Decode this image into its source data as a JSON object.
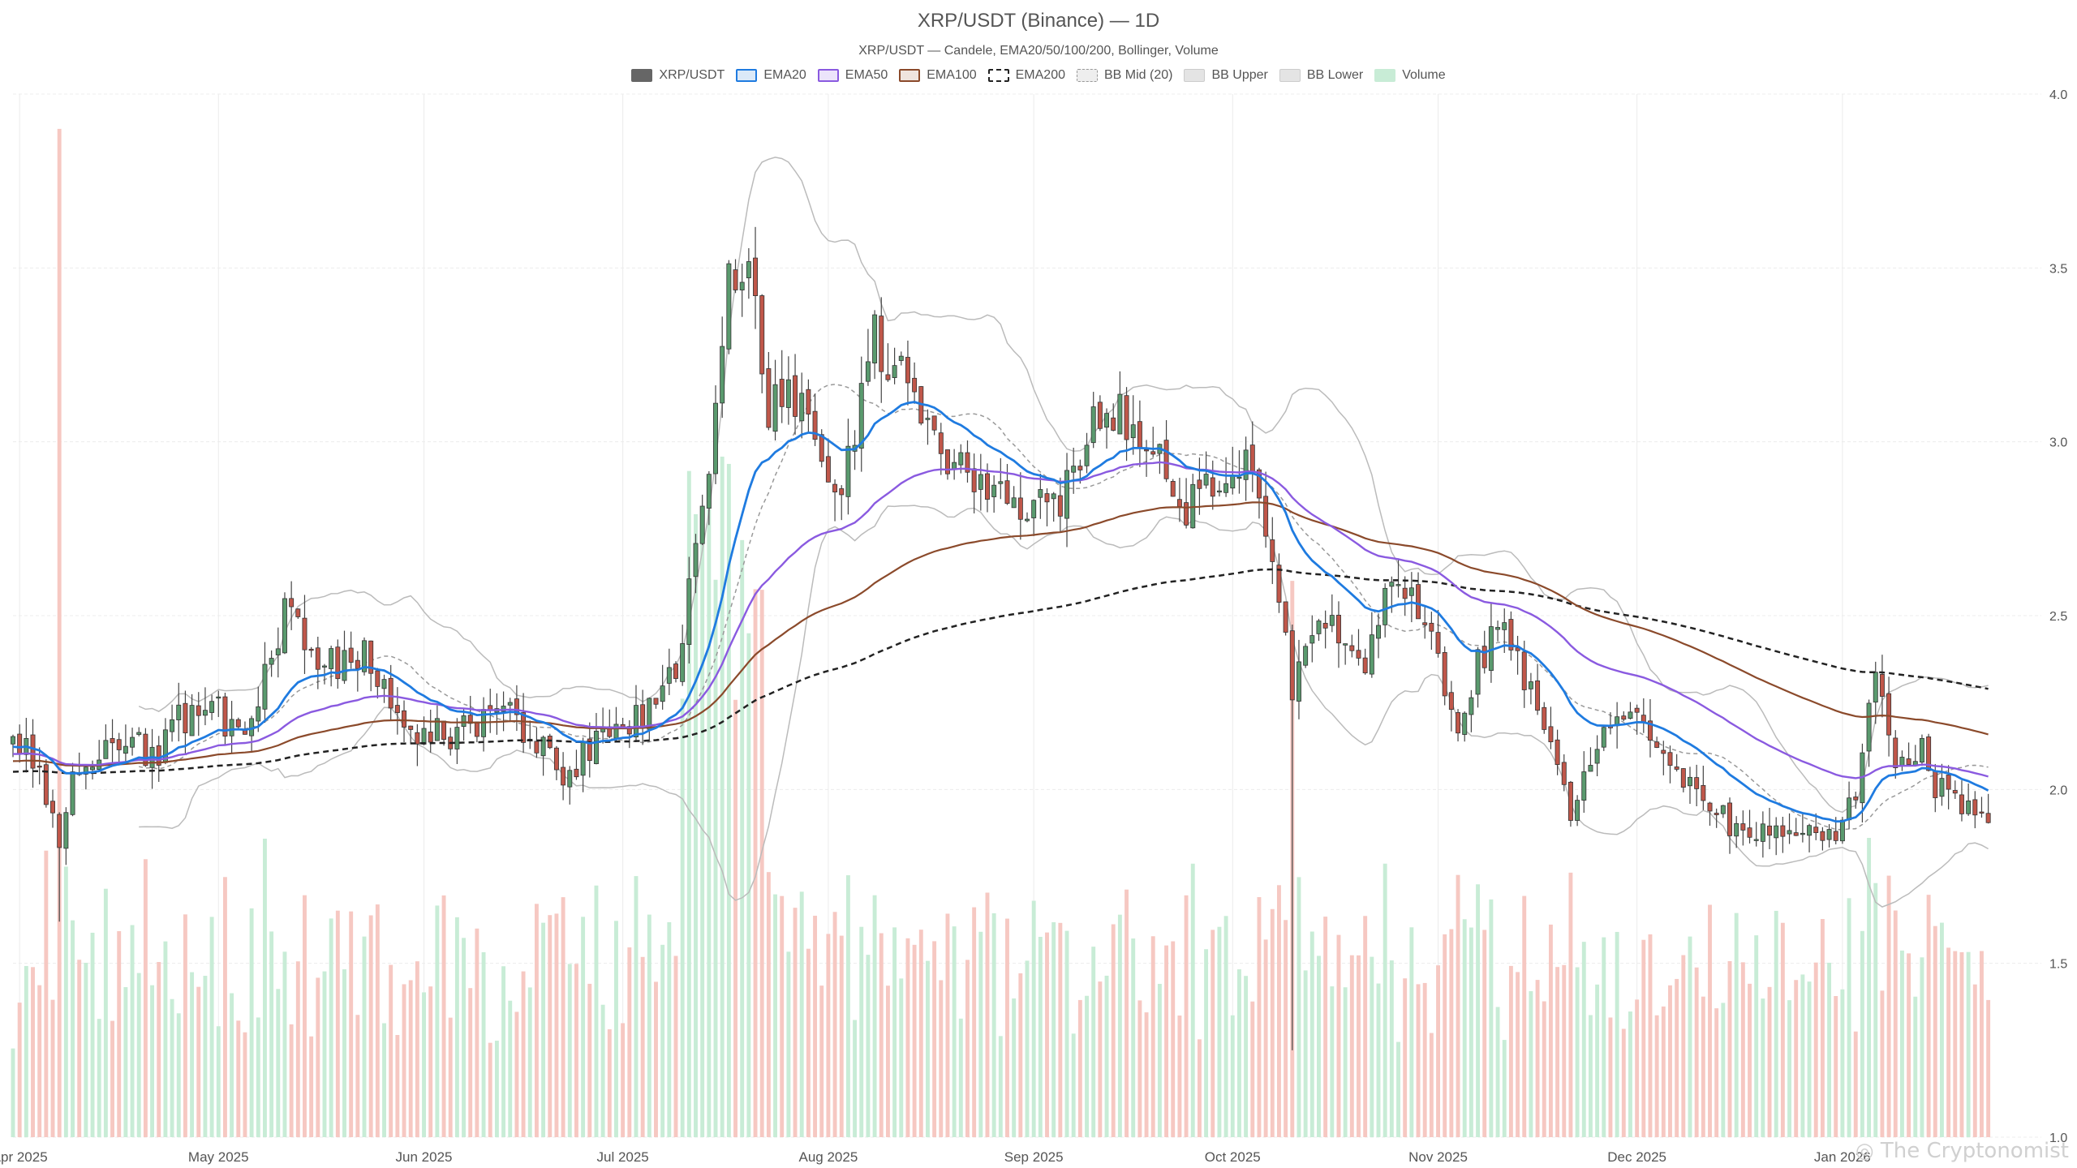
{
  "chart_data": {
    "type": "candlestick",
    "title": "XRP/USDT (Binance) — 1D",
    "subtitle": "XRP/USDT — Candele, EMA20/50/100/200, Bollinger, Volume",
    "legend_placement": "top-center",
    "grid": true,
    "x_range": [
      "2025-03-31",
      "2026-01-31"
    ],
    "ylim": [
      1.0,
      4.0
    ],
    "y_ticks": [
      "1.0",
      "1.5",
      "2.0",
      "2.5",
      "3.0",
      "3.5",
      "4.0"
    ],
    "x_ticks": [
      {
        "label": "Apr 2025",
        "date": "2025-04-01"
      },
      {
        "label": "May 2025",
        "date": "2025-05-01"
      },
      {
        "label": "Jun 2025",
        "date": "2025-06-01"
      },
      {
        "label": "Jul 2025",
        "date": "2025-07-01"
      },
      {
        "label": "Aug 2025",
        "date": "2025-08-01"
      },
      {
        "label": "Sep 2025",
        "date": "2025-09-01"
      },
      {
        "label": "Oct 2025",
        "date": "2025-10-01"
      },
      {
        "label": "Nov 2025",
        "date": "2025-11-01"
      },
      {
        "label": "Dec 2025",
        "date": "2025-12-01"
      },
      {
        "label": "Jan 2026",
        "date": "2026-01-01"
      }
    ],
    "legend": [
      {
        "name": "XRP/USDT",
        "key": "candles"
      },
      {
        "name": "EMA20",
        "key": "ema20"
      },
      {
        "name": "EMA50",
        "key": "ema50"
      },
      {
        "name": "EMA100",
        "key": "ema100"
      },
      {
        "name": "EMA200",
        "key": "ema200"
      },
      {
        "name": "BB Mid (20)",
        "key": "bb_mid"
      },
      {
        "name": "BB Upper",
        "key": "bb_upper"
      },
      {
        "name": "BB Lower",
        "key": "bb_lower"
      },
      {
        "name": "Volume",
        "key": "volume"
      }
    ],
    "colors": {
      "up": "#5a9a6e",
      "down": "#c0574a",
      "candle_legend": "#666666",
      "ema20": "#1f7be0",
      "ema50": "#8a5ae0",
      "ema100": "#8b4a2b",
      "ema200": "#222222",
      "bb_mid": "#999999",
      "bb_band": "#bbbbbb",
      "volume_up": "#c8ecd6",
      "volume_down": "#f6c8c2"
    },
    "close_anchors": [
      [
        "2025-03-31",
        2.13
      ],
      [
        "2025-04-04",
        2.1
      ],
      [
        "2025-04-07",
        1.8
      ],
      [
        "2025-04-09",
        2.05
      ],
      [
        "2025-04-14",
        2.15
      ],
      [
        "2025-04-22",
        2.1
      ],
      [
        "2025-04-25",
        2.2
      ],
      [
        "2025-05-01",
        2.22
      ],
      [
        "2025-05-05",
        2.12
      ],
      [
        "2025-05-09",
        2.4
      ],
      [
        "2025-05-12",
        2.55
      ],
      [
        "2025-05-16",
        2.35
      ],
      [
        "2025-05-23",
        2.38
      ],
      [
        "2025-05-31",
        2.17
      ],
      [
        "2025-06-06",
        2.15
      ],
      [
        "2025-06-12",
        2.25
      ],
      [
        "2025-06-18",
        2.15
      ],
      [
        "2025-06-22",
        2.02
      ],
      [
        "2025-06-28",
        2.18
      ],
      [
        "2025-07-04",
        2.2
      ],
      [
        "2025-07-10",
        2.4
      ],
      [
        "2025-07-12",
        2.75
      ],
      [
        "2025-07-14",
        2.9
      ],
      [
        "2025-07-17",
        3.45
      ],
      [
        "2025-07-20",
        3.55
      ],
      [
        "2025-07-23",
        3.1
      ],
      [
        "2025-07-26",
        3.18
      ],
      [
        "2025-08-02",
        2.8
      ],
      [
        "2025-08-08",
        3.3
      ],
      [
        "2025-08-13",
        3.15
      ],
      [
        "2025-08-19",
        2.95
      ],
      [
        "2025-08-25",
        2.85
      ],
      [
        "2025-08-30",
        2.8
      ],
      [
        "2025-09-05",
        2.85
      ],
      [
        "2025-09-10",
        3.05
      ],
      [
        "2025-09-14",
        3.08
      ],
      [
        "2025-09-20",
        2.98
      ],
      [
        "2025-09-24",
        2.82
      ],
      [
        "2025-09-30",
        2.92
      ],
      [
        "2025-10-04",
        2.92
      ],
      [
        "2025-10-10",
        2.3
      ],
      [
        "2025-10-15",
        2.48
      ],
      [
        "2025-10-20",
        2.33
      ],
      [
        "2025-10-25",
        2.6
      ],
      [
        "2025-10-30",
        2.48
      ],
      [
        "2025-11-04",
        2.2
      ],
      [
        "2025-11-10",
        2.5
      ],
      [
        "2025-11-17",
        2.2
      ],
      [
        "2025-11-21",
        1.95
      ],
      [
        "2025-11-23",
        2.05
      ],
      [
        "2025-11-27",
        2.2
      ],
      [
        "2025-12-02",
        2.18
      ],
      [
        "2025-12-08",
        2.05
      ],
      [
        "2025-12-15",
        1.9
      ],
      [
        "2025-12-18",
        1.88
      ],
      [
        "2025-12-25",
        1.87
      ],
      [
        "2025-12-31",
        1.88
      ],
      [
        "2026-01-03",
        2.0
      ],
      [
        "2026-01-06",
        2.32
      ],
      [
        "2026-01-09",
        2.1
      ],
      [
        "2026-01-13",
        2.12
      ],
      [
        "2026-01-15",
        2.02
      ],
      [
        "2026-01-20",
        1.95
      ],
      [
        "2026-01-23",
        1.92
      ]
    ],
    "volume_note": "Volume bars rendered as an overlay at the bottom of the plot, green = up day, red = down day"
  }
}
